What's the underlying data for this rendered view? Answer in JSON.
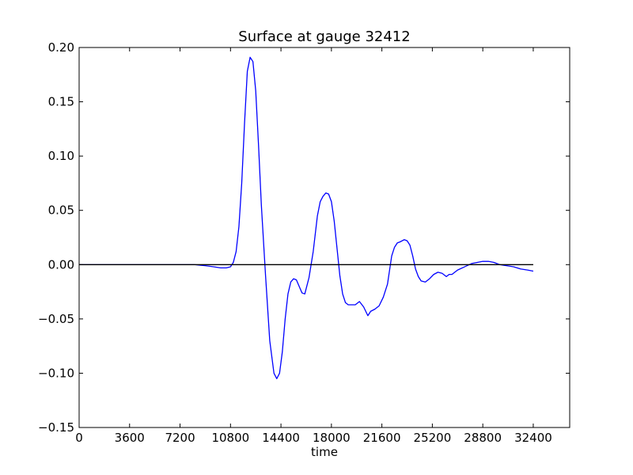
{
  "chart_data": {
    "type": "line",
    "title": "Surface at gauge 32412",
    "xlabel": "time",
    "ylabel": "",
    "xlim": [
      0,
      35000
    ],
    "ylim": [
      -0.15,
      0.2
    ],
    "grid": false,
    "xticks": [
      0,
      3600,
      7200,
      10800,
      14400,
      18000,
      21600,
      25200,
      28800,
      32400
    ],
    "xtick_labels": [
      "0",
      "3600",
      "7200",
      "10800",
      "14400",
      "18000",
      "21600",
      "25200",
      "28800",
      "32400"
    ],
    "yticks": [
      -0.15,
      -0.1,
      -0.05,
      0.0,
      0.05,
      0.1,
      0.15,
      0.2
    ],
    "ytick_labels": [
      "−0.15",
      "−0.10",
      "−0.05",
      "0.00",
      "0.05",
      "0.10",
      "0.15",
      "0.20"
    ],
    "series": [
      {
        "color": "#0000ff",
        "x": [
          0,
          3600,
          7200,
          8200,
          9000,
          9600,
          10100,
          10500,
          10800,
          11000,
          11200,
          11400,
          11600,
          11800,
          12000,
          12200,
          12400,
          12600,
          12800,
          13000,
          13300,
          13600,
          13900,
          14100,
          14300,
          14500,
          14700,
          14900,
          15100,
          15300,
          15500,
          15700,
          15900,
          16100,
          16400,
          16700,
          17000,
          17200,
          17400,
          17600,
          17800,
          18000,
          18200,
          18400,
          18600,
          18800,
          19000,
          19200,
          19400,
          19700,
          20000,
          20300,
          20600,
          20800,
          21100,
          21400,
          21700,
          22000,
          22300,
          22500,
          22700,
          22900,
          23200,
          23400,
          23600,
          23800,
          24000,
          24200,
          24400,
          24700,
          25000,
          25300,
          25600,
          25900,
          26200,
          26400,
          26600,
          26800,
          27000,
          27500,
          28000,
          28400,
          28800,
          29200,
          29600,
          30000,
          30500,
          31000,
          31500,
          32000,
          32400
        ],
        "y": [
          0.0,
          0.0,
          0.0,
          0.0,
          -0.001,
          -0.002,
          -0.003,
          -0.003,
          -0.002,
          0.002,
          0.012,
          0.035,
          0.075,
          0.13,
          0.178,
          0.191,
          0.187,
          0.16,
          0.11,
          0.055,
          -0.01,
          -0.07,
          -0.1,
          -0.105,
          -0.1,
          -0.08,
          -0.05,
          -0.027,
          -0.016,
          -0.013,
          -0.014,
          -0.02,
          -0.026,
          -0.027,
          -0.012,
          0.012,
          0.045,
          0.058,
          0.063,
          0.066,
          0.065,
          0.058,
          0.04,
          0.015,
          -0.01,
          -0.027,
          -0.035,
          -0.037,
          -0.037,
          -0.037,
          -0.034,
          -0.039,
          -0.047,
          -0.043,
          -0.041,
          -0.038,
          -0.03,
          -0.018,
          0.008,
          0.016,
          0.02,
          0.021,
          0.023,
          0.022,
          0.018,
          0.008,
          -0.004,
          -0.011,
          -0.015,
          -0.016,
          -0.013,
          -0.009,
          -0.007,
          -0.008,
          -0.011,
          -0.009,
          -0.009,
          -0.007,
          -0.005,
          -0.002,
          0.001,
          0.002,
          0.003,
          0.003,
          0.002,
          0.0,
          -0.001,
          -0.002,
          -0.004,
          -0.005,
          -0.006
        ]
      },
      {
        "color": "#000000",
        "x": [
          0,
          32400
        ],
        "y": [
          0.0,
          0.0
        ]
      }
    ]
  }
}
